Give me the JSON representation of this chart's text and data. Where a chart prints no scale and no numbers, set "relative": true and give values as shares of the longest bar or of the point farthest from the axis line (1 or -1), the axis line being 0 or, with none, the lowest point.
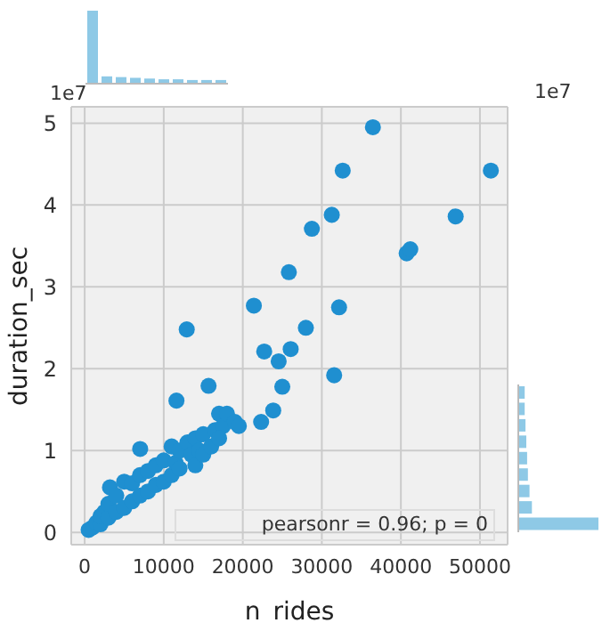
{
  "chart_data": [
    {
      "type": "scatter",
      "xlabel": "n_rides",
      "ylabel": "duration_sec",
      "color": "#1f8fd0",
      "marker": "circle",
      "grid": true,
      "xlim": [
        -1700,
        53500
      ],
      "xticks": [
        0,
        10000,
        20000,
        30000,
        40000,
        50000
      ],
      "ylim": [
        -0.15,
        5.2
      ],
      "yticks": [
        0,
        1,
        2,
        3,
        4,
        5
      ],
      "annotations": [
        "1e7",
        "pearsonr = 0.96; p = 0"
      ],
      "x": [
        500,
        1000,
        1500,
        2000,
        2000,
        2500,
        3000,
        3000,
        3200,
        4000,
        4000,
        5000,
        5000,
        6000,
        6000,
        7000,
        7000,
        8000,
        8000,
        9000,
        9000,
        10000,
        10000,
        11000,
        11000,
        11500,
        12000,
        12000,
        13000,
        13500,
        14000,
        14000,
        14500,
        15000,
        15000,
        16000,
        16500,
        17000,
        17500,
        18000,
        19000,
        19500,
        17000,
        7020,
        22320,
        23850,
        11610,
        15670,
        25000,
        31560,
        24540,
        22710,
        26060,
        27980,
        12910,
        32180,
        21400,
        25830,
        40730,
        41190,
        28740,
        46930,
        31260,
        51380,
        32640,
        36460
      ],
      "values": [
        0.03,
        0.06,
        0.12,
        0.1,
        0.2,
        0.25,
        0.18,
        0.35,
        0.55,
        0.25,
        0.45,
        0.3,
        0.62,
        0.38,
        0.6,
        0.45,
        0.7,
        0.5,
        0.75,
        0.58,
        0.82,
        0.62,
        0.88,
        0.7,
        1.05,
        0.85,
        0.78,
        1.0,
        1.1,
        0.95,
        0.82,
        1.15,
        1.0,
        0.95,
        1.2,
        1.05,
        1.25,
        1.45,
        1.3,
        1.45,
        1.35,
        1.3,
        1.15,
        1.02,
        1.35,
        1.49,
        1.61,
        1.79,
        1.78,
        1.92,
        2.09,
        2.21,
        2.24,
        2.5,
        2.48,
        2.75,
        2.77,
        3.18,
        3.41,
        3.46,
        3.71,
        3.86,
        3.88,
        4.42,
        4.42,
        4.95
      ]
    },
    {
      "type": "bar",
      "relative": true,
      "color": "#8ec9e6",
      "categories": [
        null,
        null,
        null,
        null,
        null,
        null,
        null,
        null,
        null,
        null
      ],
      "values": [
        1,
        0.1,
        0.09,
        0.08,
        0.07,
        0.06,
        0.06,
        0.05,
        0.05,
        0.05
      ]
    },
    {
      "type": "bar",
      "orientation": "horizontal",
      "relative": true,
      "color": "#8ec9e6",
      "categories": [
        null,
        null,
        null,
        null,
        null,
        null,
        null,
        null,
        null
      ],
      "values": [
        0.08,
        0.08,
        0.09,
        0.1,
        0.11,
        0.12,
        0.14,
        0.17,
        1
      ],
      "annotations": [
        "1e7"
      ]
    }
  ]
}
